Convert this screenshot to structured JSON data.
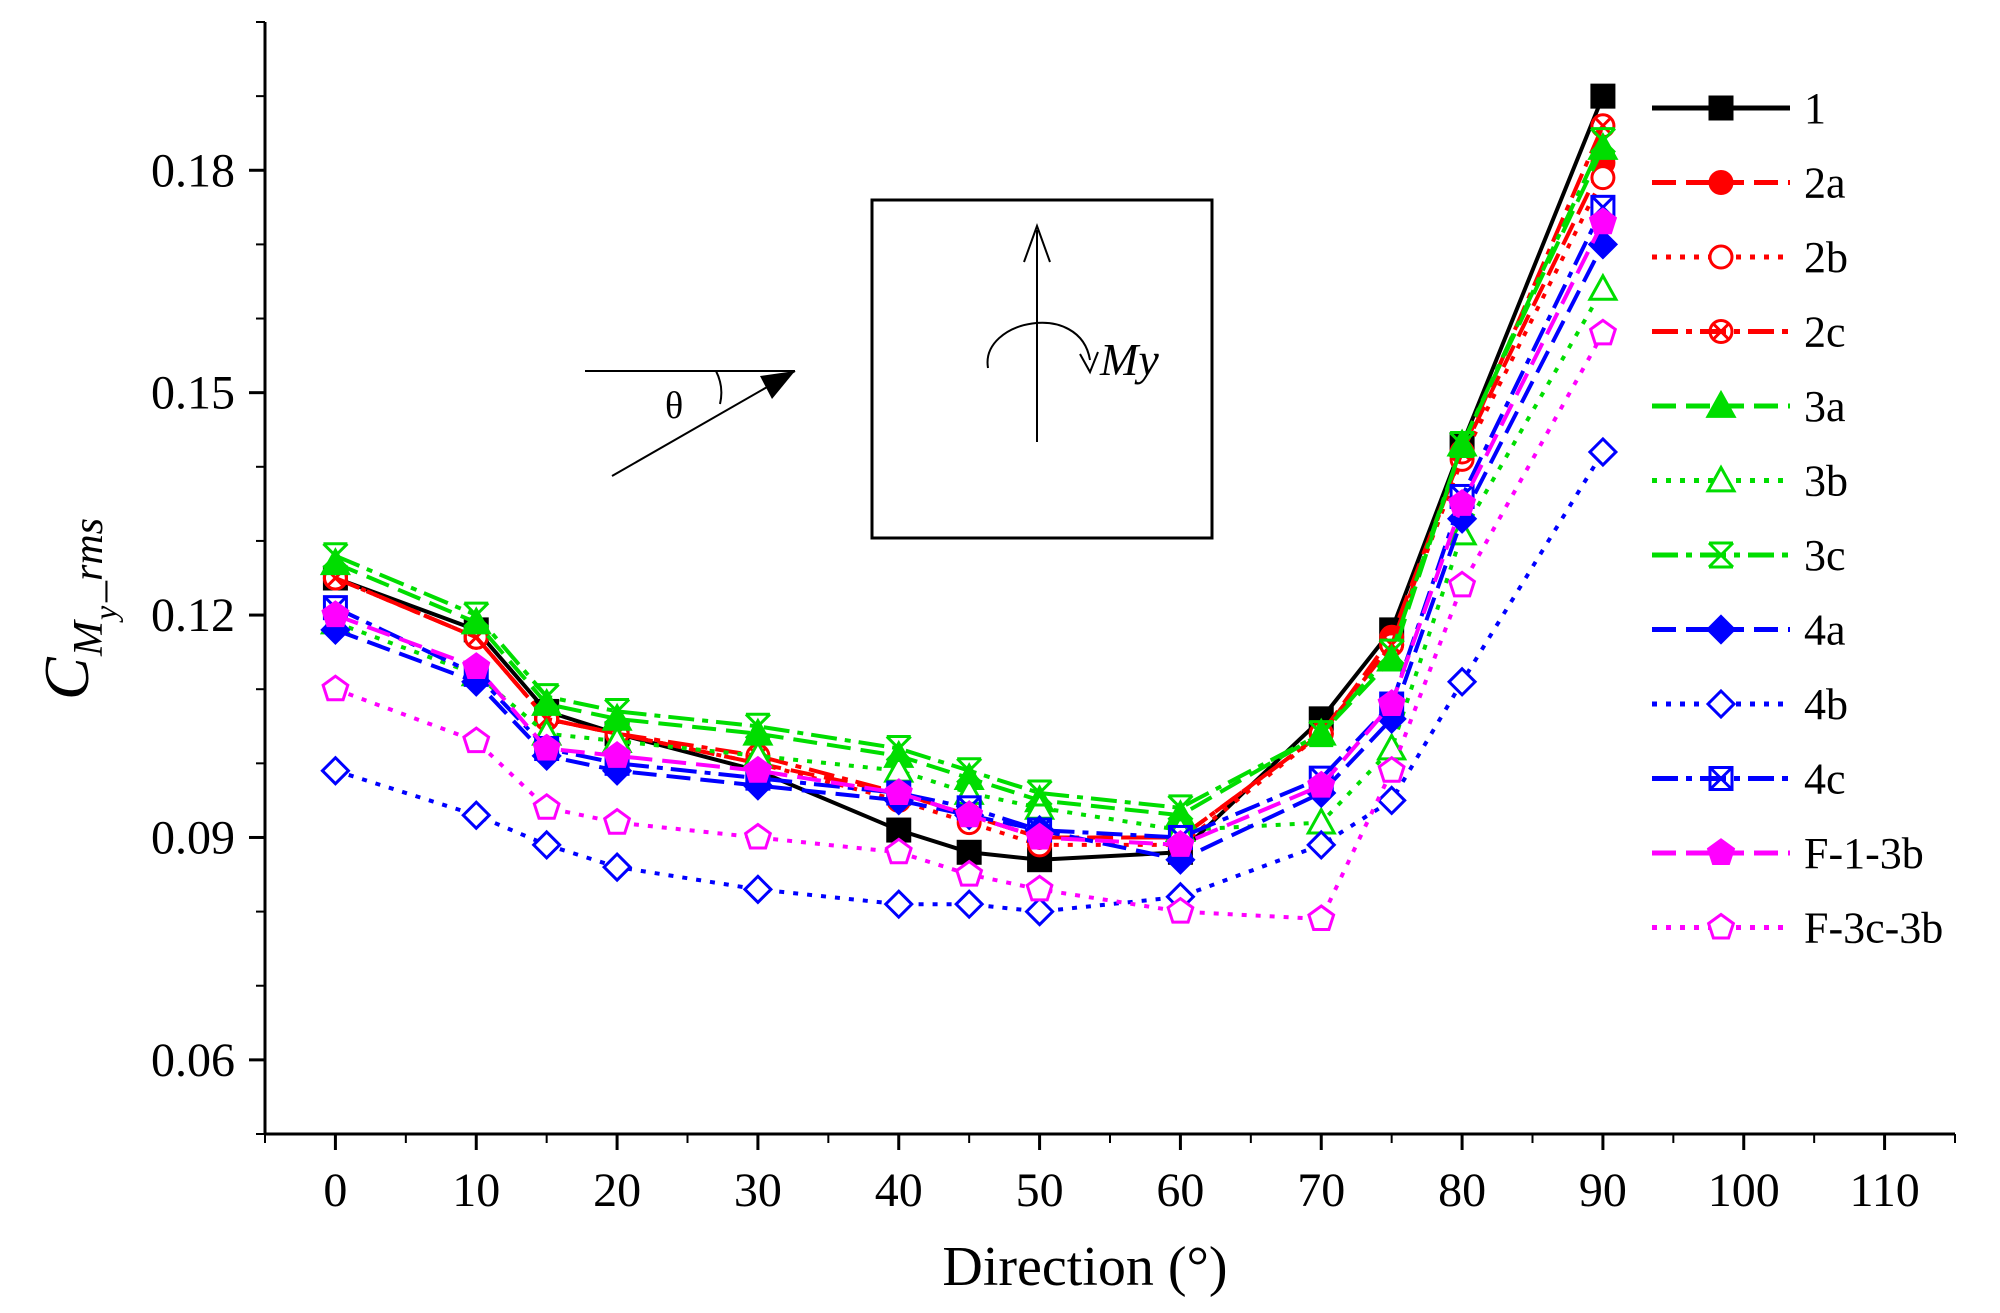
{
  "chart_data": {
    "type": "line",
    "title": "",
    "xlabel": "Direction (°)",
    "ylabel": {
      "main": "C",
      "sub": "M",
      "sub_sub": "y",
      "suffix": "_rms"
    },
    "xlim": [
      -5,
      115
    ],
    "ylim": [
      0.05,
      0.2
    ],
    "x_ticks": [
      0,
      10,
      20,
      30,
      40,
      50,
      60,
      70,
      80,
      90,
      100,
      110
    ],
    "x_tick_labels": [
      "0",
      "10",
      "20",
      "30",
      "40",
      "50",
      "60",
      "70",
      "80",
      "90",
      "100",
      "110"
    ],
    "y_ticks": [
      0.06,
      0.09,
      0.12,
      0.15,
      0.18
    ],
    "y_tick_labels": [
      "0.06",
      "0.09",
      "0.12",
      "0.15",
      "0.18"
    ],
    "grid": false,
    "legend_position": "right",
    "x": [
      0,
      10,
      15,
      20,
      30,
      40,
      45,
      50,
      60,
      70,
      75,
      80,
      90
    ],
    "series": [
      {
        "name": "1",
        "color": "#000000",
        "dash": "solid",
        "marker": "square-filled",
        "values": [
          0.125,
          0.118,
          0.107,
          0.104,
          0.099,
          0.091,
          0.088,
          0.087,
          0.088,
          0.106,
          0.118,
          0.143,
          0.19
        ]
      },
      {
        "name": "2a",
        "color": "#ff0000",
        "dash": "dash",
        "marker": "circle-filled",
        "values": [
          0.125,
          0.117,
          0.106,
          0.104,
          0.1,
          0.096,
          0.093,
          0.09,
          0.09,
          0.104,
          0.117,
          0.142,
          0.181
        ]
      },
      {
        "name": "2b",
        "color": "#ff0000",
        "dash": "dot",
        "marker": "circle-open",
        "values": [
          0.125,
          0.117,
          0.106,
          0.104,
          0.1,
          0.095,
          0.092,
          0.089,
          0.089,
          0.104,
          0.116,
          0.141,
          0.179
        ]
      },
      {
        "name": "2c",
        "color": "#ff0000",
        "dash": "dashdot",
        "marker": "circle-x",
        "values": [
          0.125,
          0.117,
          0.106,
          0.104,
          0.101,
          0.096,
          0.093,
          0.09,
          0.09,
          0.104,
          0.116,
          0.142,
          0.186
        ]
      },
      {
        "name": "3a",
        "color": "#00dd00",
        "dash": "dash",
        "marker": "triangle-filled",
        "values": [
          0.127,
          0.119,
          0.108,
          0.106,
          0.104,
          0.101,
          0.098,
          0.095,
          0.093,
          0.104,
          0.114,
          0.143,
          0.183
        ]
      },
      {
        "name": "3b",
        "color": "#00dd00",
        "dash": "dot",
        "marker": "triangle-open",
        "values": [
          0.119,
          0.112,
          0.104,
          0.103,
          0.101,
          0.099,
          0.096,
          0.094,
          0.091,
          0.092,
          0.102,
          0.131,
          0.164
        ]
      },
      {
        "name": "3c",
        "color": "#00dd00",
        "dash": "dashdot",
        "marker": "star-x",
        "values": [
          0.128,
          0.12,
          0.109,
          0.107,
          0.105,
          0.102,
          0.099,
          0.096,
          0.094,
          0.104,
          0.115,
          0.143,
          0.184
        ]
      },
      {
        "name": "4a",
        "color": "#0000ff",
        "dash": "dash",
        "marker": "diamond-filled",
        "values": [
          0.118,
          0.111,
          0.101,
          0.099,
          0.097,
          0.095,
          0.093,
          0.091,
          0.087,
          0.096,
          0.106,
          0.133,
          0.17
        ]
      },
      {
        "name": "4b",
        "color": "#0000ff",
        "dash": "dot",
        "marker": "diamond-open",
        "values": [
          0.099,
          0.093,
          0.089,
          0.086,
          0.083,
          0.081,
          0.081,
          0.08,
          0.082,
          0.089,
          0.095,
          0.111,
          0.142
        ]
      },
      {
        "name": "4c",
        "color": "#0000ff",
        "dash": "dashdot",
        "marker": "square-x",
        "values": [
          0.121,
          0.112,
          0.102,
          0.1,
          0.098,
          0.096,
          0.094,
          0.091,
          0.09,
          0.098,
          0.108,
          0.136,
          0.175
        ]
      },
      {
        "name": "F-1-3b",
        "color": "#ff00ff",
        "dash": "dash",
        "marker": "pentagon-filled",
        "values": [
          0.12,
          0.113,
          0.102,
          0.101,
          0.099,
          0.096,
          0.093,
          0.09,
          0.089,
          0.097,
          0.108,
          0.135,
          0.173
        ]
      },
      {
        "name": "F-3c-3b",
        "color": "#ff00ff",
        "dash": "dot",
        "marker": "pentagon-open",
        "values": [
          0.11,
          0.103,
          0.094,
          0.092,
          0.09,
          0.088,
          0.085,
          0.083,
          0.08,
          0.079,
          0.099,
          0.124,
          0.158
        ]
      }
    ],
    "inset": {
      "angle_symbol": "θ",
      "moment_label": "My"
    }
  }
}
